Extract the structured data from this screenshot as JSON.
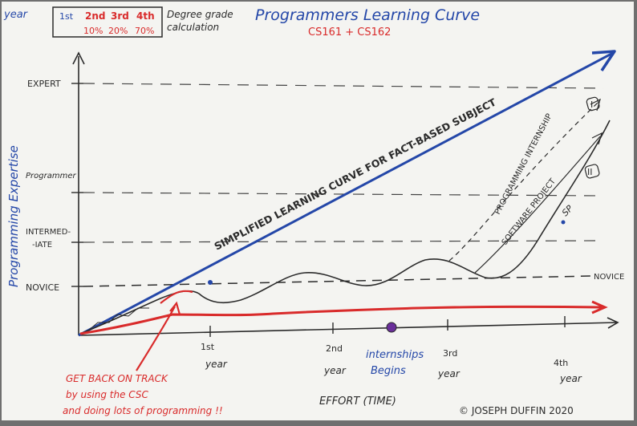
{
  "header": {
    "year_label": "year",
    "years": [
      "1st",
      "2nd",
      "3rd",
      "4th"
    ],
    "weights": [
      "10%",
      "20%",
      "70%"
    ],
    "grade_note_line1": "Degree grade",
    "grade_note_line2": "calculation"
  },
  "title": "Programmers Learning Curve",
  "subtitle": "CS161 + CS162",
  "y_axis_label": "Programming Expertise",
  "levels": {
    "expert": "EXPERT",
    "programmer": "Programmer",
    "intermediate_line1": "INTERMED-",
    "intermediate_line2": "-IATE",
    "novice_left": "NOVICE",
    "novice_right": "NOVICE"
  },
  "x_ticks": [
    {
      "num": "1st",
      "word": "year"
    },
    {
      "num": "2nd",
      "word": "year"
    },
    {
      "num": "3rd",
      "word": "year"
    },
    {
      "num": "4th",
      "word": "year"
    }
  ],
  "x_axis_label": "EFFORT (TIME)",
  "diagonal_label": "SIMPLIFIED LEARNING CURVE FOR FACT-BASED SUBJECT",
  "internship_curve_label": "PROGRAMMING INTERNSHIP",
  "project_curve_label": "SOFTWARE PROJECT",
  "sp_label": "SP",
  "roman_one": "I",
  "roman_two": "II",
  "internships_note_line1": "internships",
  "internships_note_line2": "Begins",
  "advice_line1": "GET BACK ON TRACK",
  "advice_line2": "by using the CSC",
  "advice_line3": "and doing lots of programming !!",
  "copyright": "© JOSEPH DUFFIN 2020",
  "colors": {
    "paper": "#f4f4f1",
    "ink_black": "#2b2b2b",
    "ink_blue": "#2447a8",
    "ink_red": "#d92b2b",
    "ink_purple": "#6a2f9a"
  }
}
